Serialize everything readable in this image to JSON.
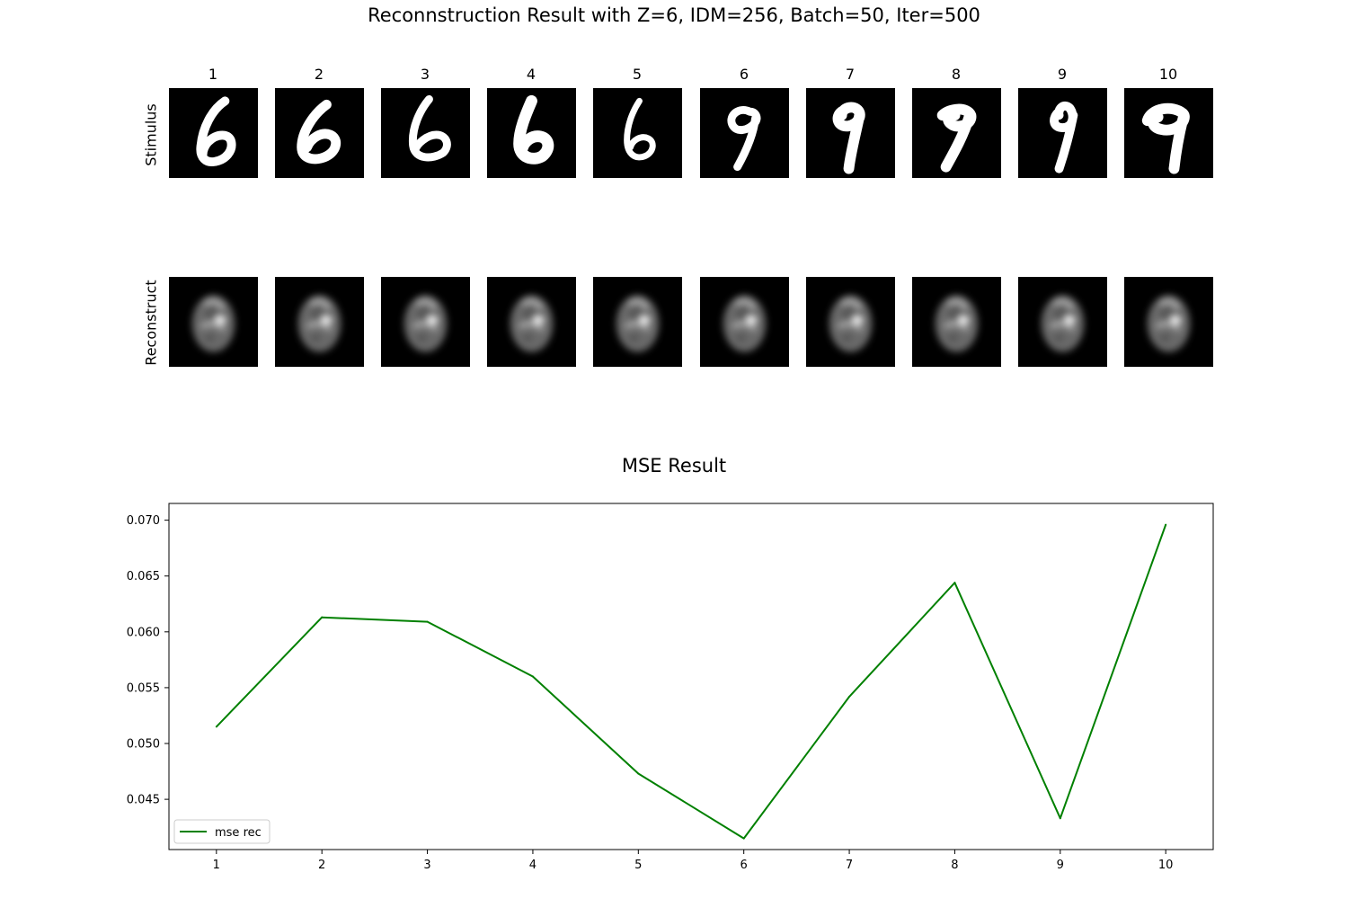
{
  "figure": {
    "title": "Reconnstruction Result with Z=6, IDM=256, Batch=50, Iter=500",
    "row_labels": [
      "Stimulus",
      "Reconstruct"
    ],
    "column_titles": [
      "1",
      "2",
      "3",
      "4",
      "5",
      "6",
      "7",
      "8",
      "9",
      "10"
    ],
    "stimulus_digits": [
      "6",
      "6",
      "6",
      "6",
      "6",
      "9",
      "9",
      "9",
      "9",
      "9"
    ],
    "colors": {
      "cell_background": "#000000",
      "stimulus_stroke": "#ffffff",
      "reconstruct_blur": "#bdbdbd"
    }
  },
  "chart_data": {
    "type": "line",
    "title": "MSE Result",
    "xlabel": "",
    "ylabel": "",
    "x": [
      1,
      2,
      3,
      4,
      5,
      6,
      7,
      8,
      9,
      10
    ],
    "x_tick_labels": [
      "1",
      "2",
      "3",
      "4",
      "5",
      "6",
      "7",
      "8",
      "9",
      "10"
    ],
    "y_ticks": [
      0.045,
      0.05,
      0.055,
      0.06,
      0.065,
      0.07
    ],
    "y_tick_labels": [
      "0.045",
      "0.050",
      "0.055",
      "0.060",
      "0.065",
      "0.070"
    ],
    "xlim": [
      0.55,
      10.45
    ],
    "ylim": [
      0.0405,
      0.0715
    ],
    "grid": false,
    "legend_position": "lower-left",
    "series": [
      {
        "name": "mse rec",
        "color": "#008000",
        "values": [
          0.0515,
          0.0613,
          0.0609,
          0.056,
          0.0473,
          0.0415,
          0.0542,
          0.0644,
          0.0433,
          0.0696
        ]
      }
    ]
  }
}
